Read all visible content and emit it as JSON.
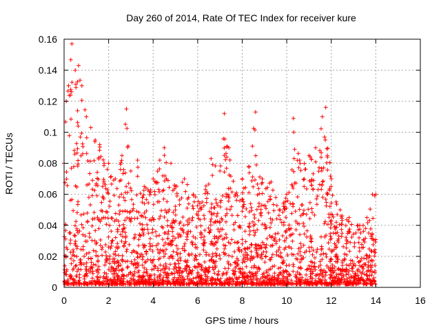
{
  "chart_data": {
    "type": "scatter",
    "title": "Day 260 of 2014, Rate Of TEC Index for receiver kure",
    "xlabel": "GPS time / hours",
    "ylabel": "ROTI / TECUs",
    "xlim": [
      0,
      16
    ],
    "ylim": [
      0,
      0.16
    ],
    "x_ticks": [
      "0",
      "2",
      "4",
      "6",
      "8",
      "10",
      "12",
      "14",
      "16"
    ],
    "y_ticks": [
      "0",
      "0.02",
      "0.04",
      "0.06",
      "0.08",
      "0.1",
      "0.12",
      "0.14",
      "0.16"
    ],
    "grid": true,
    "marker": "+",
    "color": "#ff0000",
    "series": [
      {
        "name": "ROTI",
        "envelope": [
          {
            "x": 0.0,
            "max": 0.08
          },
          {
            "x": 0.1,
            "max": 0.12
          },
          {
            "x": 0.2,
            "max": 0.13
          },
          {
            "x": 0.35,
            "max": 0.157
          },
          {
            "x": 0.5,
            "max": 0.14
          },
          {
            "x": 0.65,
            "max": 0.143
          },
          {
            "x": 0.8,
            "max": 0.13
          },
          {
            "x": 1.0,
            "max": 0.11
          },
          {
            "x": 1.2,
            "max": 0.103
          },
          {
            "x": 1.4,
            "max": 0.095
          },
          {
            "x": 1.6,
            "max": 0.092
          },
          {
            "x": 1.8,
            "max": 0.08
          },
          {
            "x": 2.0,
            "max": 0.08
          },
          {
            "x": 2.3,
            "max": 0.07
          },
          {
            "x": 2.6,
            "max": 0.085
          },
          {
            "x": 2.8,
            "max": 0.115
          },
          {
            "x": 3.0,
            "max": 0.075
          },
          {
            "x": 3.3,
            "max": 0.082
          },
          {
            "x": 3.6,
            "max": 0.065
          },
          {
            "x": 4.0,
            "max": 0.07
          },
          {
            "x": 4.3,
            "max": 0.082
          },
          {
            "x": 4.5,
            "max": 0.09
          },
          {
            "x": 4.8,
            "max": 0.08
          },
          {
            "x": 5.0,
            "max": 0.065
          },
          {
            "x": 5.4,
            "max": 0.07
          },
          {
            "x": 5.8,
            "max": 0.06
          },
          {
            "x": 6.2,
            "max": 0.055
          },
          {
            "x": 6.6,
            "max": 0.083
          },
          {
            "x": 7.0,
            "max": 0.075
          },
          {
            "x": 7.2,
            "max": 0.112
          },
          {
            "x": 7.4,
            "max": 0.09
          },
          {
            "x": 7.7,
            "max": 0.06
          },
          {
            "x": 8.0,
            "max": 0.07
          },
          {
            "x": 8.3,
            "max": 0.078
          },
          {
            "x": 8.6,
            "max": 0.113
          },
          {
            "x": 8.9,
            "max": 0.07
          },
          {
            "x": 9.3,
            "max": 0.068
          },
          {
            "x": 9.7,
            "max": 0.05
          },
          {
            "x": 10.0,
            "max": 0.06
          },
          {
            "x": 10.3,
            "max": 0.109
          },
          {
            "x": 10.6,
            "max": 0.08
          },
          {
            "x": 11.0,
            "max": 0.085
          },
          {
            "x": 11.3,
            "max": 0.09
          },
          {
            "x": 11.6,
            "max": 0.11
          },
          {
            "x": 11.75,
            "max": 0.116
          },
          {
            "x": 12.0,
            "max": 0.07
          },
          {
            "x": 12.4,
            "max": 0.05
          },
          {
            "x": 12.8,
            "max": 0.045
          },
          {
            "x": 13.2,
            "max": 0.04
          },
          {
            "x": 13.6,
            "max": 0.045
          },
          {
            "x": 13.85,
            "max": 0.06
          },
          {
            "x": 14.0,
            "max": 0.06
          }
        ],
        "baseline_min": 0.002,
        "x_range": [
          0,
          14
        ],
        "point_count": 2600
      }
    ]
  }
}
